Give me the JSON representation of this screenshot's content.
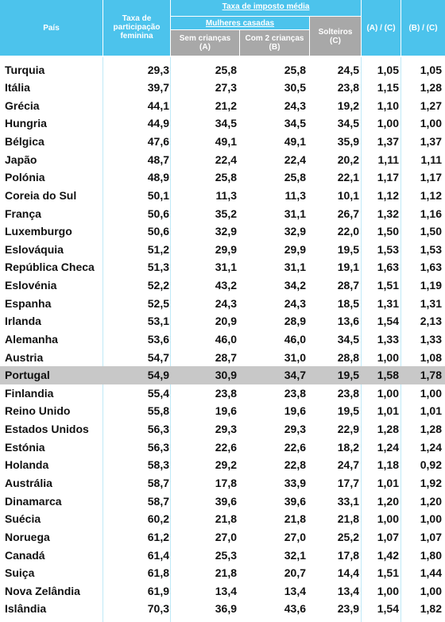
{
  "table": {
    "header": {
      "country": "País",
      "participation": [
        "Taxa de",
        "participação",
        "feminina"
      ],
      "tax": "Taxa de imposto média",
      "married": "Mulheres casadas",
      "no_children": [
        "Sem crianças",
        "(A)"
      ],
      "two_children": [
        "Com 2 crianças",
        "(B)"
      ],
      "single": [
        "Solteiros",
        "(C)"
      ],
      "ratio_a": "(A) / (C)",
      "ratio_b": "(B) / (C)"
    },
    "rows": [
      [
        "Turquia",
        "29,3",
        "25,8",
        "25,8",
        "24,5",
        "1,05",
        "1,05"
      ],
      [
        "Itália",
        "39,7",
        "27,3",
        "30,5",
        "23,8",
        "1,15",
        "1,28"
      ],
      [
        "Grécia",
        "44,1",
        "21,2",
        "24,3",
        "19,2",
        "1,10",
        "1,27"
      ],
      [
        "Hungria",
        "44,9",
        "34,5",
        "34,5",
        "34,5",
        "1,00",
        "1,00"
      ],
      [
        "Bélgica",
        "47,6",
        "49,1",
        "49,1",
        "35,9",
        "1,37",
        "1,37"
      ],
      [
        "Japão",
        "48,7",
        "22,4",
        "22,4",
        "20,2",
        "1,11",
        "1,11"
      ],
      [
        "Polónia",
        "48,9",
        "25,8",
        "25,8",
        "22,1",
        "1,17",
        "1,17"
      ],
      [
        "Coreia do Sul",
        "50,1",
        "11,3",
        "11,3",
        "10,1",
        "1,12",
        "1,12"
      ],
      [
        "França",
        "50,6",
        "35,2",
        "31,1",
        "26,7",
        "1,32",
        "1,16"
      ],
      [
        "Luxemburgo",
        "50,6",
        "32,9",
        "32,9",
        "22,0",
        "1,50",
        "1,50"
      ],
      [
        "Eslováquia",
        "51,2",
        "29,9",
        "29,9",
        "19,5",
        "1,53",
        "1,53"
      ],
      [
        "República Checa",
        "51,3",
        "31,1",
        "31,1",
        "19,1",
        "1,63",
        "1,63"
      ],
      [
        "Eslovénia",
        "52,2",
        "43,2",
        "34,2",
        "28,7",
        "1,51",
        "1,19"
      ],
      [
        "Espanha",
        "52,5",
        "24,3",
        "24,3",
        "18,5",
        "1,31",
        "1,31"
      ],
      [
        "Irlanda",
        "53,1",
        "20,9",
        "28,9",
        "13,6",
        "1,54",
        "2,13"
      ],
      [
        "Alemanha",
        "53,6",
        "46,0",
        "46,0",
        "34,5",
        "1,33",
        "1,33"
      ],
      [
        "Austria",
        "54,7",
        "28,7",
        "31,0",
        "28,8",
        "1,00",
        "1,08"
      ],
      [
        "Portugal",
        "54,9",
        "30,9",
        "34,7",
        "19,5",
        "1,58",
        "1,78"
      ],
      [
        "Finlandia",
        "55,4",
        "23,8",
        "23,8",
        "23,8",
        "1,00",
        "1,00"
      ],
      [
        "Reino Unido",
        "55,8",
        "19,6",
        "19,6",
        "19,5",
        "1,01",
        "1,01"
      ],
      [
        "Estados Unidos",
        "56,3",
        "29,3",
        "29,3",
        "22,9",
        "1,28",
        "1,28"
      ],
      [
        "Estónia",
        "56,3",
        "22,6",
        "22,6",
        "18,2",
        "1,24",
        "1,24"
      ],
      [
        "Holanda",
        "58,3",
        "29,2",
        "22,8",
        "24,7",
        "1,18",
        "0,92"
      ],
      [
        "Austrália",
        "58,7",
        "17,8",
        "33,9",
        "17,7",
        "1,01",
        "1,92"
      ],
      [
        "Dinamarca",
        "58,7",
        "39,6",
        "39,6",
        "33,1",
        "1,20",
        "1,20"
      ],
      [
        "Suécia",
        "60,2",
        "21,8",
        "21,8",
        "21,8",
        "1,00",
        "1,00"
      ],
      [
        "Noruega",
        "61,2",
        "27,0",
        "27,0",
        "25,2",
        "1,07",
        "1,07"
      ],
      [
        "Canadá",
        "61,4",
        "25,3",
        "32,1",
        "17,8",
        "1,42",
        "1,80"
      ],
      [
        "Suiça",
        "61,8",
        "21,8",
        "20,7",
        "14,4",
        "1,51",
        "1,44"
      ],
      [
        "Nova Zelândia",
        "61,9",
        "13,4",
        "13,4",
        "13,4",
        "1,00",
        "1,00"
      ],
      [
        "Islândia",
        "70,3",
        "36,9",
        "43,6",
        "23,9",
        "1,54",
        "1,82"
      ]
    ]
  }
}
